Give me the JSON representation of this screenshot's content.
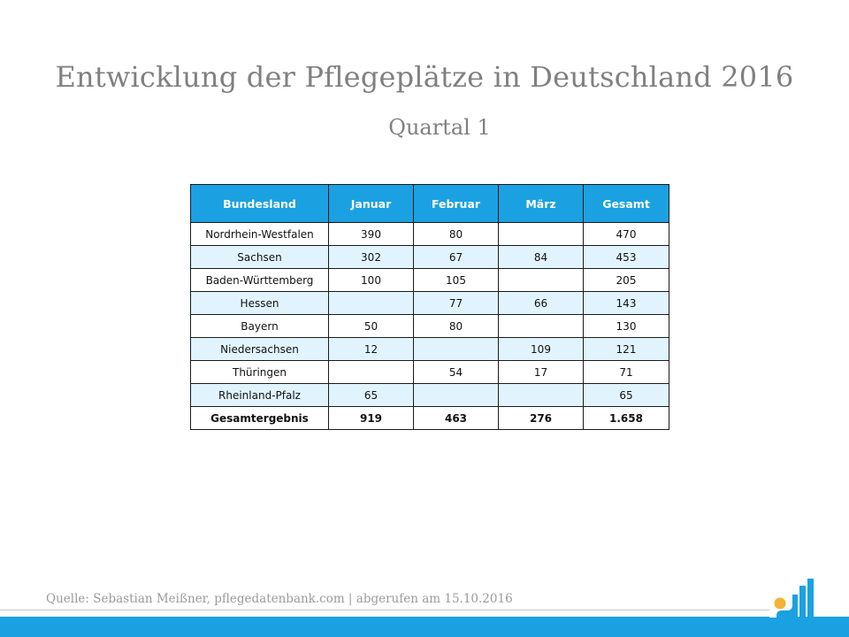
{
  "slide": {
    "title": "Entwicklung der Pflegeplätze in Deutschland 2016",
    "subtitle": "Quartal 1",
    "source": "Quelle: Sebastian Meißner, pflegedatenbank.com | abgerufen am 15.10.2016"
  },
  "table": {
    "headers": [
      "Bundesland",
      "Januar",
      "Februar",
      "März",
      "Gesamt"
    ],
    "rows": [
      {
        "bundesland": "Nordrhein-Westfalen",
        "januar": "390",
        "februar": "80",
        "maerz": "",
        "gesamt": "470"
      },
      {
        "bundesland": "Sachsen",
        "januar": "302",
        "februar": "67",
        "maerz": "84",
        "gesamt": "453"
      },
      {
        "bundesland": "Baden-Württemberg",
        "januar": "100",
        "februar": "105",
        "maerz": "",
        "gesamt": "205"
      },
      {
        "bundesland": "Hessen",
        "januar": "",
        "februar": "77",
        "maerz": "66",
        "gesamt": "143"
      },
      {
        "bundesland": "Bayern",
        "januar": "50",
        "februar": "80",
        "maerz": "",
        "gesamt": "130"
      },
      {
        "bundesland": "Niedersachsen",
        "januar": "12",
        "februar": "",
        "maerz": "109",
        "gesamt": "121"
      },
      {
        "bundesland": "Thüringen",
        "januar": "",
        "februar": "54",
        "maerz": "17",
        "gesamt": "71"
      },
      {
        "bundesland": "Rheinland-Pfalz",
        "januar": "65",
        "februar": "",
        "maerz": "",
        "gesamt": "65"
      }
    ],
    "total": {
      "bundesland": "Gesamtergebnis",
      "januar": "919",
      "februar": "463",
      "maerz": "276",
      "gesamt": "1.658"
    }
  },
  "colors": {
    "accent": "#1ba1e2",
    "row_alt": "#e1f4fd",
    "title_text": "#808080",
    "logo_dot": "#f5b335"
  },
  "logo": {
    "icon": "pflegedatenbank-logo-icon"
  }
}
